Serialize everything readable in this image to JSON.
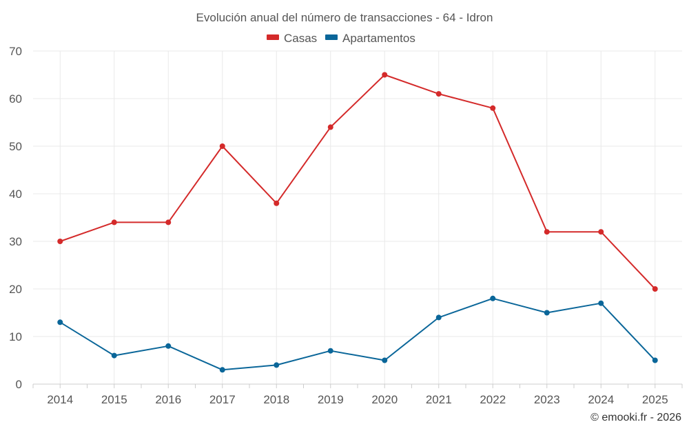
{
  "chart_data": {
    "type": "line",
    "title": "Evolución anual del número de transacciones - 64 - Idron",
    "categories": [
      "2014",
      "2015",
      "2016",
      "2017",
      "2018",
      "2019",
      "2020",
      "2021",
      "2022",
      "2023",
      "2024",
      "2025"
    ],
    "series": [
      {
        "name": "Casas",
        "color": "#d42a2a",
        "values": [
          30,
          34,
          34,
          50,
          38,
          54,
          65,
          61,
          58,
          32,
          32,
          20
        ]
      },
      {
        "name": "Apartamentos",
        "color": "#0a6699",
        "values": [
          13,
          6,
          8,
          3,
          4,
          7,
          5,
          14,
          18,
          15,
          17,
          5
        ]
      }
    ],
    "ylim": [
      0,
      70
    ],
    "yticks": [
      "0",
      "10",
      "20",
      "30",
      "40",
      "50",
      "60",
      "70"
    ],
    "xlabel": "",
    "ylabel": "",
    "grid": true,
    "legend_position": "top-center"
  },
  "credit": "© emooki.fr - 2026"
}
